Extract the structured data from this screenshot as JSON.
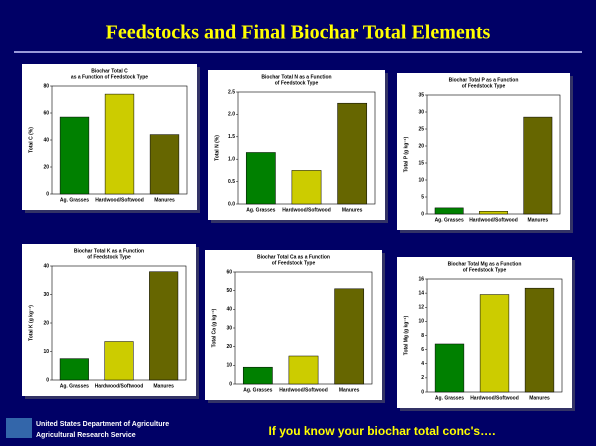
{
  "header": {
    "title": "Feedstocks and Final Biochar Total Elements"
  },
  "footer": {
    "agency": "United States Department of Agriculture",
    "service": "Agricultural Research Service",
    "tagline": "If you know your biochar total conc's…."
  },
  "chart_data": [
    {
      "type": "bar",
      "title": [
        "Biochar Total C",
        "as a Function of Feedstock Type"
      ],
      "y_label": "Total C (%)",
      "categories": [
        "Ag. Grasses",
        "Hardwood/Softwood",
        "Manures"
      ],
      "values": [
        57,
        74,
        44
      ],
      "colors": [
        "#008000",
        "#cccc00",
        "#666600"
      ],
      "ylim": [
        0,
        80
      ],
      "yticks": [
        0,
        20,
        40,
        60,
        80
      ]
    },
    {
      "type": "bar",
      "title": [
        "Biochar Total N as a Function",
        "of Feedstock Type"
      ],
      "y_label": "Total N (%)",
      "categories": [
        "Ag. Grasses",
        "Hardwood/Softwood",
        "Manures"
      ],
      "values": [
        1.15,
        0.75,
        2.25
      ],
      "colors": [
        "#008000",
        "#cccc00",
        "#666600"
      ],
      "ylim": [
        0,
        2.5
      ],
      "yticks": [
        {
          "value": 0,
          "label": "0.0"
        },
        0.5,
        {
          "value": 1,
          "label": "1.0"
        },
        1.5,
        {
          "value": 2,
          "label": "2.0"
        },
        2.5
      ]
    },
    {
      "type": "bar",
      "title": [
        "Biochar Total P as a Function",
        "of Feedstock Type"
      ],
      "y_label": "Total P (g kg⁻¹)",
      "categories": [
        "Ag. Grasses",
        "Hardwood/Softwood",
        "Manures"
      ],
      "values": [
        1.8,
        0.8,
        28.5
      ],
      "colors": [
        "#008000",
        "#cccc00",
        "#666600"
      ],
      "ylim": [
        0,
        35
      ],
      "yticks": [
        0,
        5,
        10,
        15,
        20,
        25,
        30,
        35
      ]
    },
    {
      "type": "bar",
      "title": [
        "Biochar Total K as a Function",
        "of Feedstock Type"
      ],
      "y_label": "Total K (g kg⁻¹)",
      "categories": [
        "Ag. Grasses",
        "Hardwood/Softwood",
        "Manures"
      ],
      "values": [
        7.5,
        13.5,
        38
      ],
      "colors": [
        "#008000",
        "#cccc00",
        "#666600"
      ],
      "ylim": [
        0,
        40
      ],
      "yticks": [
        0,
        10,
        20,
        30,
        40
      ]
    },
    {
      "type": "bar",
      "title": [
        "Biochar Total Ca as a Function",
        "of Feedstock Type"
      ],
      "y_label": "Total Ca (g kg⁻¹)",
      "categories": [
        "Ag. Grasses",
        "Hardwood/Softwood",
        "Manures"
      ],
      "values": [
        9,
        15,
        51
      ],
      "colors": [
        "#008000",
        "#cccc00",
        "#666600"
      ],
      "ylim": [
        0,
        60
      ],
      "yticks": [
        0,
        10,
        20,
        30,
        40,
        50,
        60
      ]
    },
    {
      "type": "bar",
      "title": [
        "Biochar Total Mg as a Function",
        "of Feedstock Type"
      ],
      "y_label": "Total Mg (g kg⁻¹)",
      "categories": [
        "Ag. Grasses",
        "Hardwood/Softwood",
        "Manures"
      ],
      "values": [
        6.8,
        13.8,
        14.7
      ],
      "colors": [
        "#008000",
        "#cccc00",
        "#666600"
      ],
      "ylim": [
        0,
        16
      ],
      "yticks": [
        0,
        2,
        4,
        6,
        8,
        10,
        12,
        14,
        16
      ]
    }
  ]
}
